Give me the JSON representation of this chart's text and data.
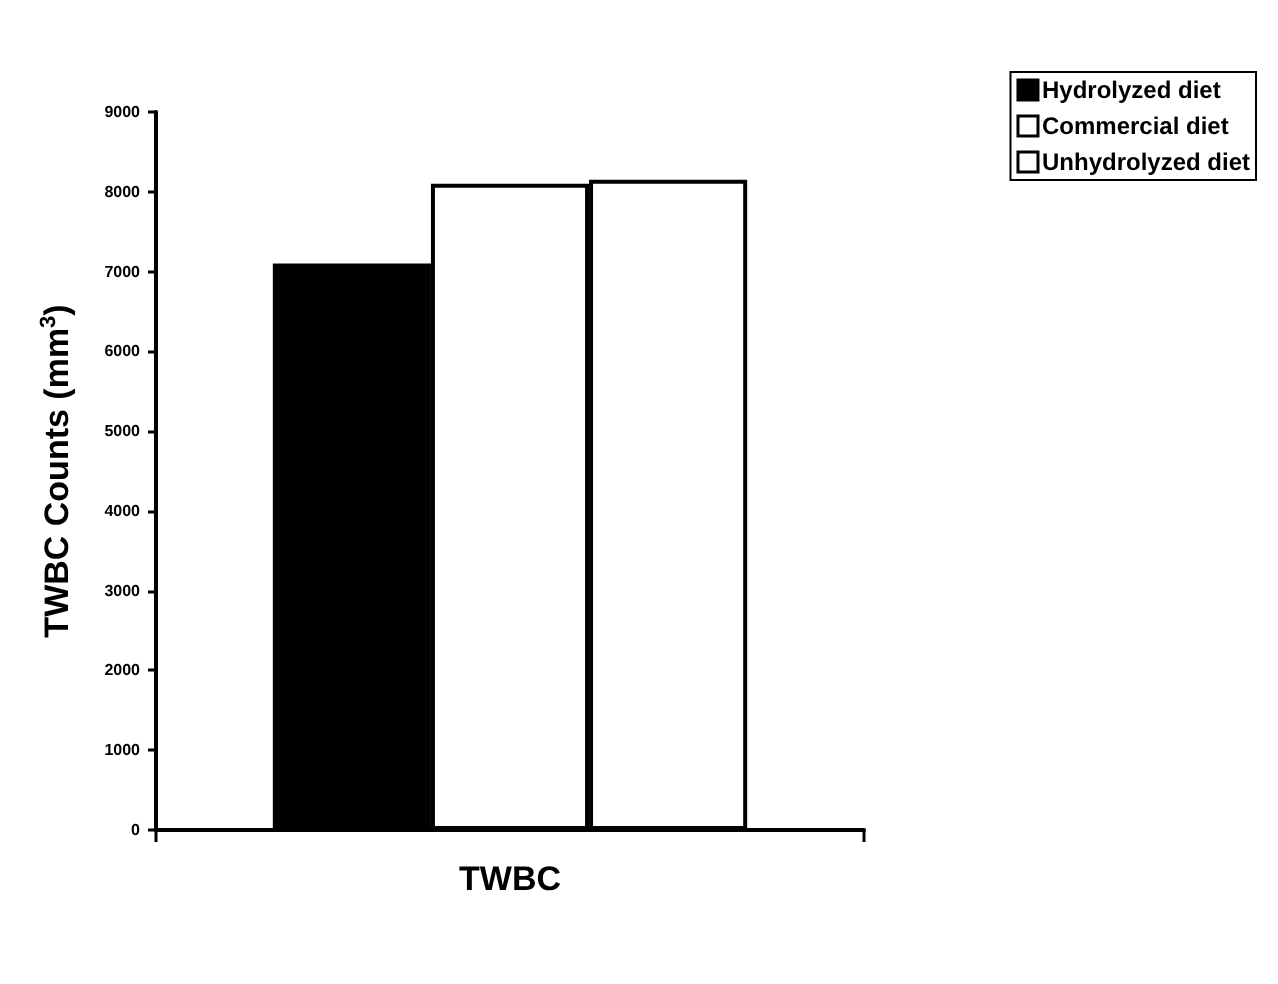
{
  "chart_data": {
    "type": "bar",
    "xlabel": null,
    "ylabel": "TWBC Counts (mm$^{3}$)",
    "categories": [
      "TWBC"
    ],
    "series": [
      {
        "name": "Hydrolyzed diet",
        "color": "#000000",
        "values": [
          7100
        ]
      },
      {
        "name": "Commercial diet",
        "color": "#ffffff",
        "values": [
          8100
        ]
      },
      {
        "name": "Unhydrolyzed diet",
        "color": "#ffffff",
        "values": [
          8150
        ]
      }
    ],
    "ylim": [
      0,
      9000
    ],
    "yticks": [
      0,
      1000,
      2000,
      3000,
      4000,
      5000,
      6000,
      7000,
      8000,
      9000
    ],
    "grid": false,
    "legend": "top right"
  }
}
